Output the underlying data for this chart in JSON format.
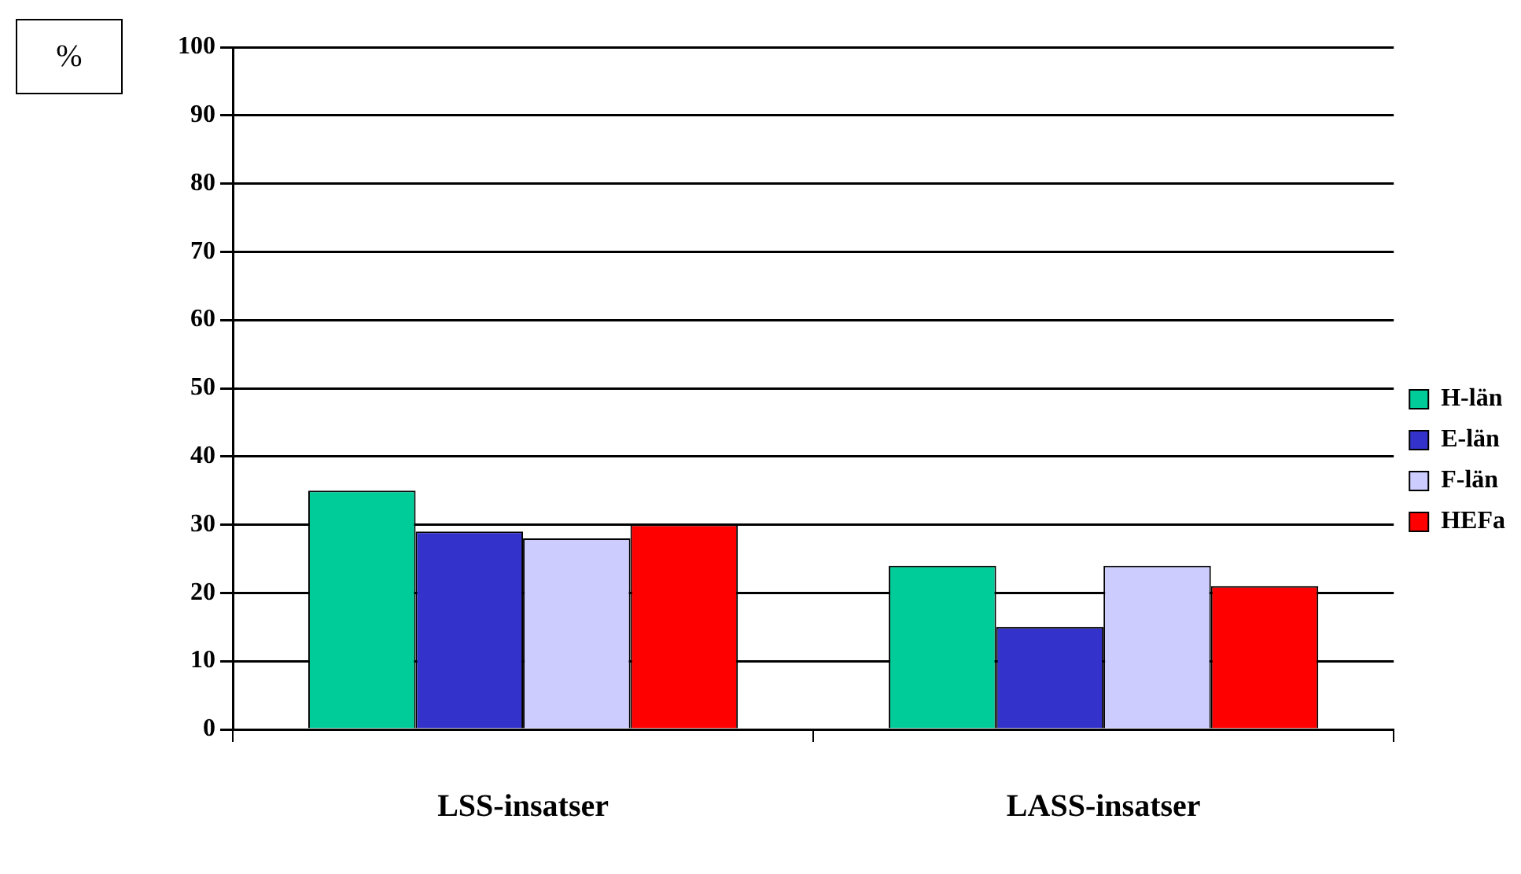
{
  "chart_data": {
    "type": "bar",
    "ylabel": "%",
    "categories": [
      "LSS-insatser",
      "LASS-insatser"
    ],
    "series": [
      {
        "name": "H-län",
        "color": "#00cc99",
        "values": [
          35,
          24
        ]
      },
      {
        "name": "E-län",
        "color": "#3333cc",
        "values": [
          29,
          15
        ]
      },
      {
        "name": "F-län",
        "color": "#ccccff",
        "values": [
          28,
          24
        ]
      },
      {
        "name": "HEFa",
        "color": "#ff0000",
        "values": [
          30,
          21
        ]
      }
    ],
    "ylim": [
      0,
      100
    ],
    "yticks": [
      0,
      10,
      20,
      30,
      40,
      50,
      60,
      70,
      80,
      90,
      100
    ],
    "grid": "y",
    "legend": "right"
  }
}
